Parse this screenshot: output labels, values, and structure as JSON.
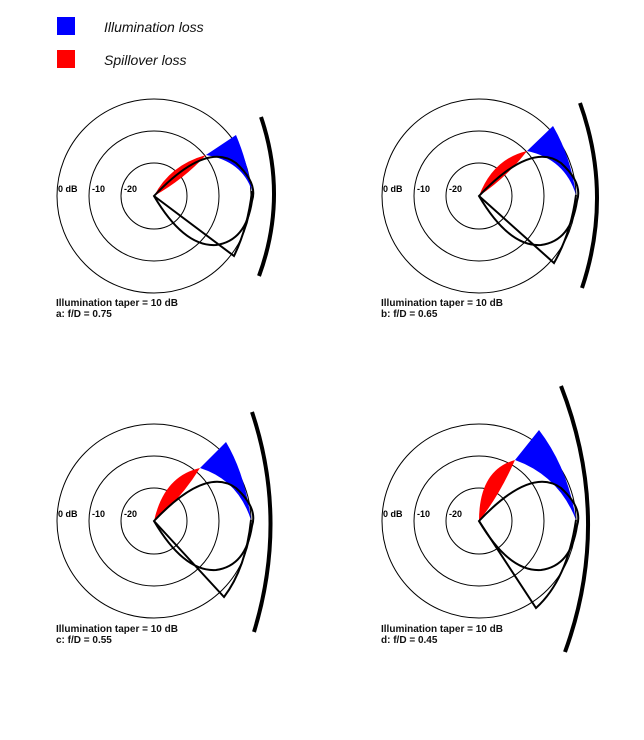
{
  "legend": {
    "illumination": {
      "label": "Illumination loss",
      "color": "#0000ff"
    },
    "spillover": {
      "label": "Spillover loss",
      "color": "#ff0000"
    }
  },
  "ring_labels": [
    "0 dB",
    "-10",
    "-20"
  ],
  "panels": [
    {
      "taper": "Illumination taper = 10 dB",
      "label": "a: f/D = 0.75"
    },
    {
      "taper": "Illumination taper = 10 dB",
      "label": "b: f/D = 0.65"
    },
    {
      "taper": "Illumination taper = 10 dB",
      "label": "c: f/D = 0.55"
    },
    {
      "taper": "Illumination taper = 10 dB",
      "label": "d: f/D = 0.45"
    }
  ]
}
